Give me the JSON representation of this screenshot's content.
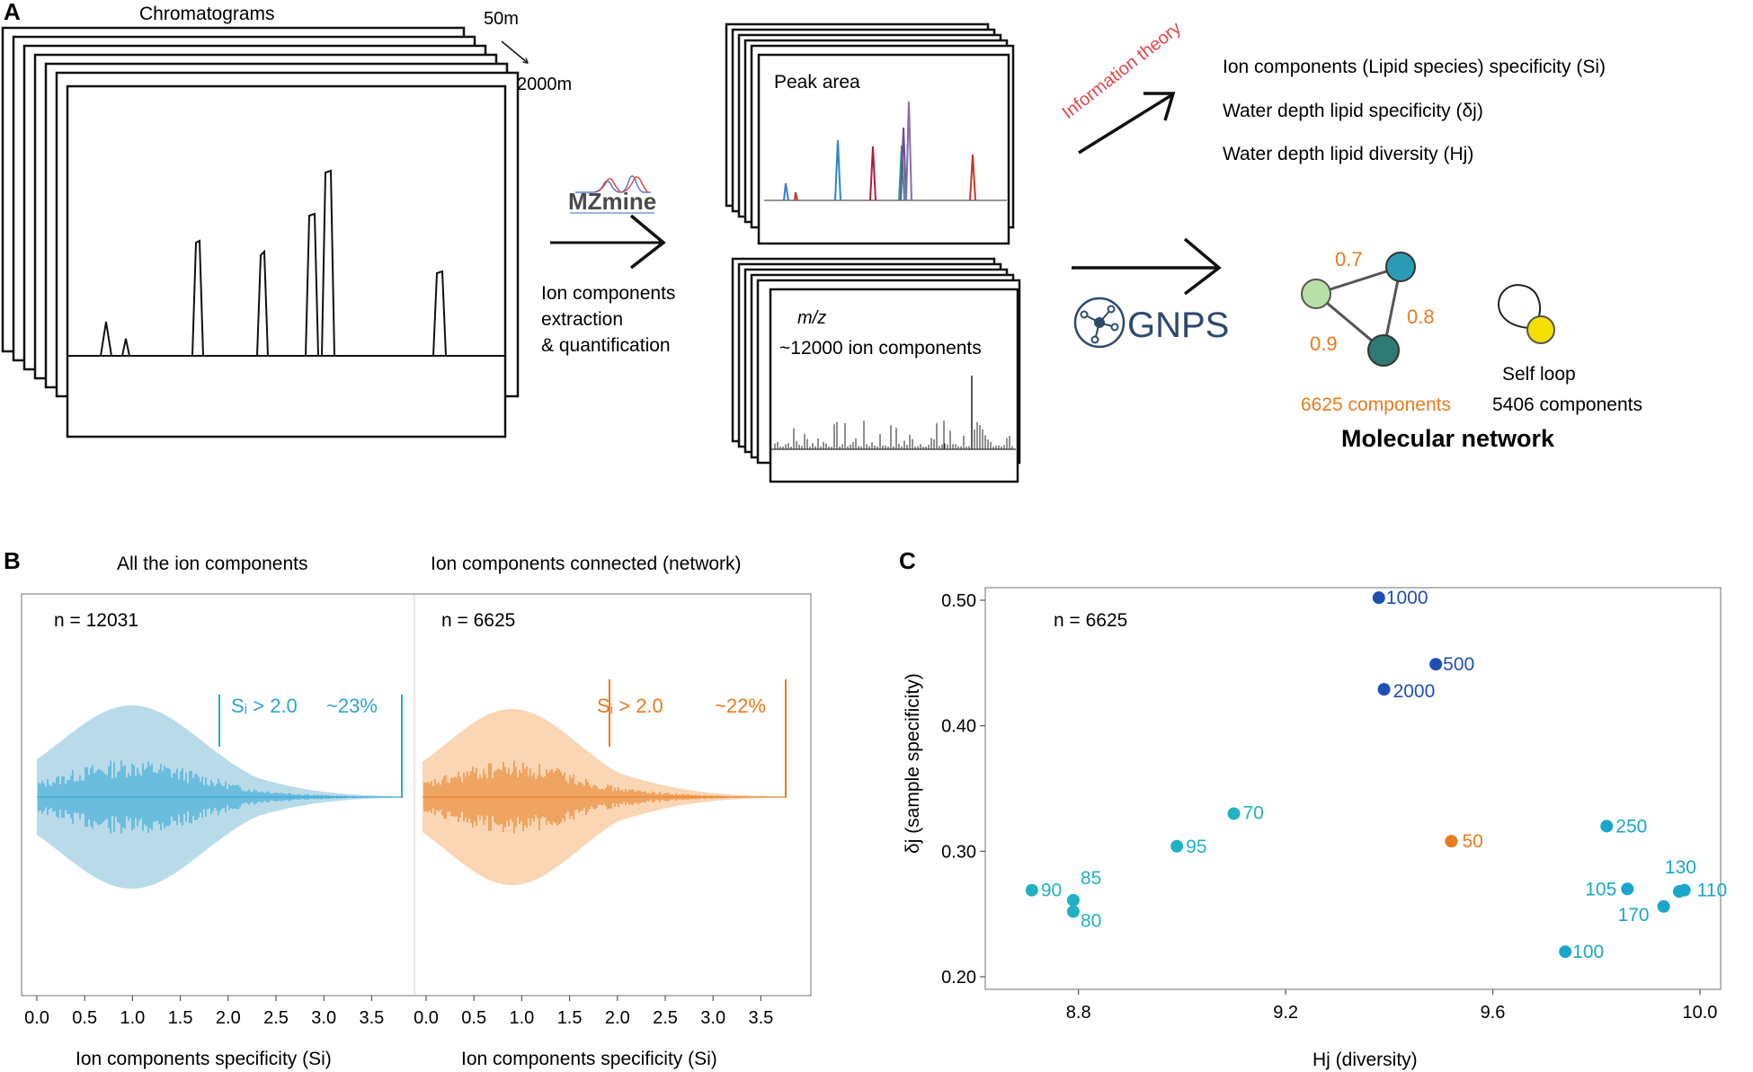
{
  "panel_a": {
    "label": "A",
    "chromatograms_title": "Chromatograms",
    "depth_start": "50m",
    "depth_end": "2000m",
    "mzmine_logo": "MZmine",
    "mzmine_caption": [
      "Ion components",
      "extraction",
      "& quantification"
    ],
    "peak_area_label": "Peak area",
    "mz_label": "m/z",
    "ion_count_label": "~12000 ion components",
    "info_theory_label": "Information theory",
    "metrics": [
      "Ion components (Lipid species) specificity (Si)",
      "Water depth lipid specificity (δj)",
      "Water depth lipid diversity (Hj)"
    ],
    "gnps_logo": "GNPS",
    "network_edges": [
      "0.7",
      "0.8",
      "0.9"
    ],
    "network_components": "6625 components",
    "self_loop_label": "Self loop",
    "self_loop_components": "5406 components",
    "network_title": "Molecular network",
    "colors": {
      "orange": "#e87b1e",
      "red_text": "#e0454c",
      "teal": "#2b9bb5",
      "light_green": "#b6e0a8",
      "dark_teal": "#2f7a72",
      "yellow": "#f4e000"
    }
  },
  "panel_b": {
    "label": "B",
    "violins": [
      {
        "title": "All the ion components",
        "n_label": "n = 12031",
        "threshold_label": "Sᵢ > 2.0",
        "percent_label": "~23%",
        "color": "#2ca5d6",
        "fill": "#b9dbe9",
        "x_label": "Ion components specificity (Si)"
      },
      {
        "title": "Ion components connected (network)",
        "n_label": "n = 6625",
        "threshold_label": "Sᵢ > 2.0",
        "percent_label": "~22%",
        "color": "#e87b1e",
        "fill": "#fad6b4",
        "x_label": "Ion components specificity (Si)"
      }
    ],
    "x_ticks": [
      "0.0",
      "0.5",
      "1.0",
      "1.5",
      "2.0",
      "2.5",
      "3.0",
      "3.5"
    ]
  },
  "chart_data": {
    "type": "scatter",
    "panel_label": "C",
    "xlabel": "Hj  (diversity)",
    "ylabel": "δj (sample specificity)",
    "annotation": "n = 6625",
    "xlim": [
      8.62,
      10.04
    ],
    "ylim": [
      0.19,
      0.51
    ],
    "x_ticks": [
      8.8,
      9.2,
      9.6,
      10.0
    ],
    "x_tick_labels": [
      "8.8",
      "9.2",
      "9.6",
      "10.0"
    ],
    "y_ticks": [
      0.2,
      0.3,
      0.4,
      0.5
    ],
    "y_tick_labels": [
      "0.20",
      "0.30",
      "0.40",
      "0.50"
    ],
    "points": [
      {
        "label": "1000",
        "x": 9.38,
        "y": 0.502,
        "color": "#1f4fb4"
      },
      {
        "label": "500",
        "x": 9.49,
        "y": 0.449,
        "color": "#1f4fb4"
      },
      {
        "label": "2000",
        "x": 9.39,
        "y": 0.429,
        "color": "#1f4fb4"
      },
      {
        "label": "70",
        "x": 9.1,
        "y": 0.33,
        "color": "#20b2c2"
      },
      {
        "label": "95",
        "x": 8.99,
        "y": 0.304,
        "color": "#20b2c2"
      },
      {
        "label": "50",
        "x": 9.52,
        "y": 0.308,
        "color": "#e87b1e"
      },
      {
        "label": "250",
        "x": 9.82,
        "y": 0.32,
        "color": "#1aa6cc"
      },
      {
        "label": "90",
        "x": 8.71,
        "y": 0.269,
        "color": "#20b2c2"
      },
      {
        "label": "85",
        "x": 8.79,
        "y": 0.261,
        "color": "#20b2c2"
      },
      {
        "label": "80",
        "x": 8.79,
        "y": 0.252,
        "color": "#20b2c2"
      },
      {
        "label": "130",
        "x": 9.96,
        "y": 0.268,
        "color": "#1aa6cc"
      },
      {
        "label": "110",
        "x": 9.97,
        "y": 0.269,
        "color": "#1aa6cc"
      },
      {
        "label": "105",
        "x": 9.86,
        "y": 0.27,
        "color": "#1aa6cc"
      },
      {
        "label": "170",
        "x": 9.93,
        "y": 0.256,
        "color": "#1aa6cc"
      },
      {
        "label": "100",
        "x": 9.74,
        "y": 0.22,
        "color": "#1aa6cc"
      }
    ]
  }
}
